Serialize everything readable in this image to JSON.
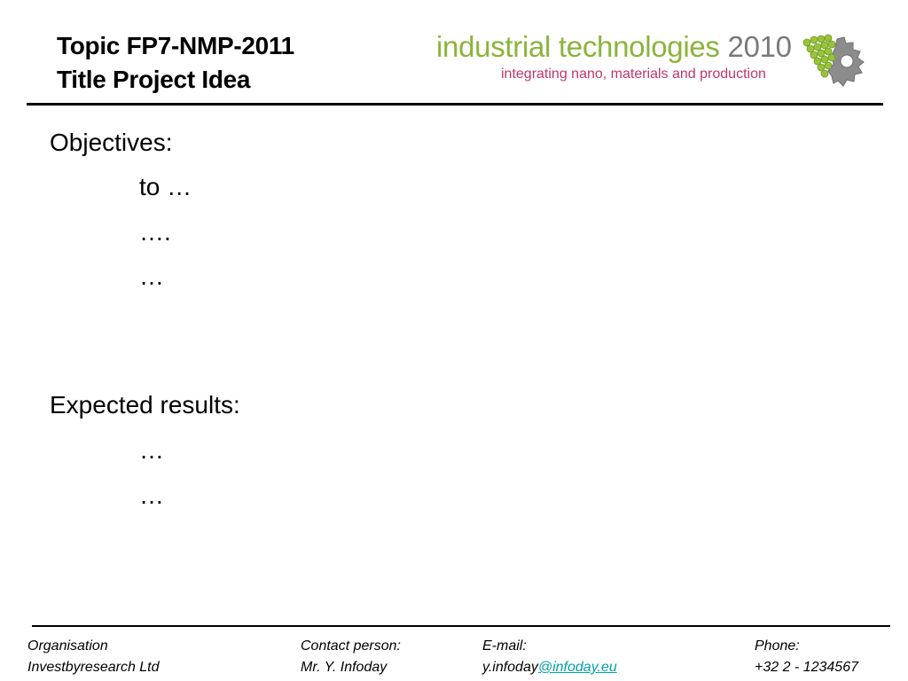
{
  "header": {
    "title_line1": "Topic FP7-NMP-2011",
    "title_line2": "Title Project Idea"
  },
  "logo": {
    "main_text": "industrial technologies",
    "year": "2010",
    "tagline": "integrating nano, materials and production",
    "graphic_icon": "grapes-gear-icon",
    "green": "#8ab43a",
    "magenta": "#c0356b",
    "gray": "#7a7a7a"
  },
  "objectives": {
    "heading": "Objectives:",
    "items": [
      "to …",
      "….",
      "…"
    ]
  },
  "expected_results": {
    "heading": "Expected results:",
    "items": [
      "…",
      "…"
    ]
  },
  "footer": {
    "organisation_label": "Organisation",
    "organisation_value": "Investbyresearch Ltd",
    "contact_label": "Contact person:",
    "contact_value": "Mr. Y. Infoday",
    "email_label": "E-mail:",
    "email_user": "y.infoday",
    "email_domain": "@infoday.eu",
    "phone_label": "Phone:",
    "phone_value": "+32 2 - 1234567",
    "link_color": "#00a3a6"
  }
}
